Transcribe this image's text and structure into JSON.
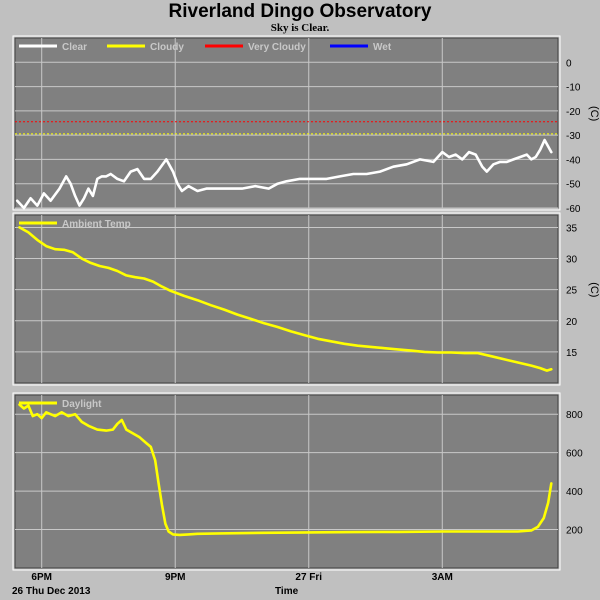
{
  "title": "Riverland Dingo Observatory",
  "subtitle": "Sky is Clear.",
  "colors": {
    "background": "#c0c0c0",
    "plot_bg": "#808080",
    "grid": "#c8c8c8",
    "clear": "#ffffff",
    "cloudy": "#ffff00",
    "very_cloudy": "#ff0000",
    "wet": "#0000ff",
    "ambient": "#ffff00",
    "daylight": "#ffff00"
  },
  "footer": {
    "date": "26 Thu Dec 2013",
    "xlabel": "Time"
  },
  "chart_data": [
    {
      "type": "line",
      "id": "sky",
      "ylabel": "(C)",
      "ylim": [
        -60,
        10
      ],
      "yticks": [
        0,
        -10,
        -20,
        -30,
        -40,
        -50,
        -60
      ],
      "xticks": [
        "6PM",
        "9PM",
        "27 Fri",
        "3AM"
      ],
      "xtick_hours": [
        18,
        21,
        24,
        27
      ],
      "xlim_hours": [
        17.4,
        29.6
      ],
      "grid": true,
      "legend_position": "top-left",
      "legend": [
        {
          "name": "Clear",
          "color": "#ffffff"
        },
        {
          "name": "Cloudy",
          "color": "#ffff00"
        },
        {
          "name": "Very Cloudy",
          "color": "#ff0000"
        },
        {
          "name": "Wet",
          "color": "#0000ff"
        }
      ],
      "thresholds": [
        {
          "name": "Very Cloudy",
          "value": -24.5,
          "color": "#ff0000"
        },
        {
          "name": "Cloudy",
          "value": -29.5,
          "color": "#ffff00"
        }
      ],
      "series": [
        {
          "name": "Clear",
          "color": "#ffffff",
          "x": [
            17.45,
            17.6,
            17.75,
            17.9,
            18.05,
            18.2,
            18.4,
            18.55,
            18.65,
            18.75,
            18.85,
            18.95,
            19.05,
            19.15,
            19.25,
            19.35,
            19.45,
            19.55,
            19.7,
            19.85,
            20.0,
            20.15,
            20.3,
            20.45,
            20.6,
            20.8,
            20.95,
            21.05,
            21.15,
            21.3,
            21.5,
            21.7,
            21.9,
            22.2,
            22.5,
            22.8,
            23.1,
            23.3,
            23.5,
            23.8,
            24.1,
            24.4,
            24.7,
            25.0,
            25.3,
            25.6,
            25.9,
            26.2,
            26.5,
            26.8,
            27.0,
            27.15,
            27.3,
            27.45,
            27.6,
            27.75,
            27.9,
            28.0,
            28.15,
            28.3,
            28.45,
            28.6,
            28.75,
            28.9,
            29.0,
            29.1,
            29.2,
            29.3,
            29.45
          ],
          "values": [
            -57,
            -60,
            -56,
            -59,
            -54,
            -57,
            -52,
            -47,
            -50,
            -55,
            -59,
            -56,
            -52,
            -55,
            -48,
            -47,
            -47,
            -46,
            -48,
            -49,
            -45,
            -44,
            -48,
            -48,
            -45,
            -40,
            -45,
            -50,
            -53,
            -51,
            -53,
            -52,
            -52,
            -52,
            -52,
            -51,
            -52,
            -50,
            -49,
            -48,
            -48,
            -48,
            -47,
            -46,
            -46,
            -45,
            -43,
            -42,
            -40,
            -41,
            -37,
            -39,
            -38,
            -40,
            -37,
            -38,
            -43,
            -45,
            -42,
            -41,
            -41,
            -40,
            -39,
            -38,
            -40,
            -39,
            -36,
            -32,
            -37
          ]
        }
      ]
    },
    {
      "type": "line",
      "id": "ambient",
      "ylabel": "(C)",
      "ylim": [
        10,
        37
      ],
      "yticks": [
        15,
        20,
        25,
        30,
        35
      ],
      "xticks": [
        "6PM",
        "9PM",
        "27 Fri",
        "3AM"
      ],
      "xtick_hours": [
        18,
        21,
        24,
        27
      ],
      "xlim_hours": [
        17.4,
        29.6
      ],
      "grid": true,
      "legend_position": "top-left",
      "legend": [
        {
          "name": "Ambient Temp",
          "color": "#ffff00"
        }
      ],
      "series": [
        {
          "name": "Ambient Temp",
          "color": "#ffff00",
          "x": [
            17.5,
            17.7,
            17.9,
            18.1,
            18.3,
            18.5,
            18.7,
            18.9,
            19.1,
            19.3,
            19.5,
            19.7,
            19.9,
            20.1,
            20.3,
            20.5,
            20.7,
            20.9,
            21.2,
            21.5,
            21.8,
            22.1,
            22.4,
            22.7,
            23.0,
            23.3,
            23.6,
            23.9,
            24.2,
            24.5,
            24.8,
            25.1,
            25.4,
            25.7,
            26.0,
            26.3,
            26.6,
            26.9,
            27.2,
            27.5,
            27.8,
            28.1,
            28.4,
            28.7,
            29.0,
            29.2,
            29.35,
            29.45
          ],
          "values": [
            35.0,
            34.2,
            33.0,
            32.0,
            31.5,
            31.4,
            31.0,
            30.0,
            29.3,
            28.8,
            28.5,
            28.0,
            27.3,
            27.0,
            26.8,
            26.3,
            25.5,
            24.8,
            24.0,
            23.3,
            22.5,
            21.8,
            21.0,
            20.3,
            19.6,
            19.0,
            18.3,
            17.7,
            17.1,
            16.7,
            16.3,
            16.0,
            15.8,
            15.6,
            15.4,
            15.2,
            15.0,
            14.9,
            14.9,
            14.8,
            14.8,
            14.3,
            13.8,
            13.3,
            12.8,
            12.4,
            12.0,
            12.2
          ]
        }
      ]
    },
    {
      "type": "line",
      "id": "daylight",
      "ylabel": "",
      "ylim": [
        0,
        900
      ],
      "yticks": [
        200,
        400,
        600,
        800
      ],
      "xticks": [
        "6PM",
        "9PM",
        "27 Fri",
        "3AM"
      ],
      "xtick_hours": [
        18,
        21,
        24,
        27
      ],
      "xlim_hours": [
        17.4,
        29.6
      ],
      "grid": true,
      "legend_position": "top-left",
      "legend": [
        {
          "name": "Daylight",
          "color": "#ffff00"
        }
      ],
      "series": [
        {
          "name": "Daylight",
          "color": "#ffff00",
          "x": [
            17.5,
            17.6,
            17.7,
            17.8,
            17.9,
            18.0,
            18.1,
            18.2,
            18.3,
            18.45,
            18.6,
            18.75,
            18.9,
            19.05,
            19.25,
            19.45,
            19.6,
            19.7,
            19.8,
            19.9,
            20.05,
            20.2,
            20.35,
            20.45,
            20.55,
            20.62,
            20.7,
            20.78,
            20.85,
            20.95,
            21.1,
            21.3,
            21.5,
            22.0,
            23.0,
            24.0,
            25.0,
            26.0,
            27.0,
            28.0,
            28.7,
            29.0,
            29.15,
            29.28,
            29.38,
            29.45
          ],
          "values": [
            850,
            830,
            845,
            790,
            800,
            780,
            810,
            800,
            790,
            810,
            790,
            800,
            760,
            740,
            720,
            715,
            720,
            750,
            770,
            720,
            700,
            680,
            650,
            630,
            560,
            450,
            330,
            230,
            190,
            175,
            172,
            175,
            178,
            180,
            183,
            185,
            187,
            188,
            190,
            190,
            190,
            195,
            215,
            260,
            340,
            440
          ]
        }
      ]
    }
  ]
}
